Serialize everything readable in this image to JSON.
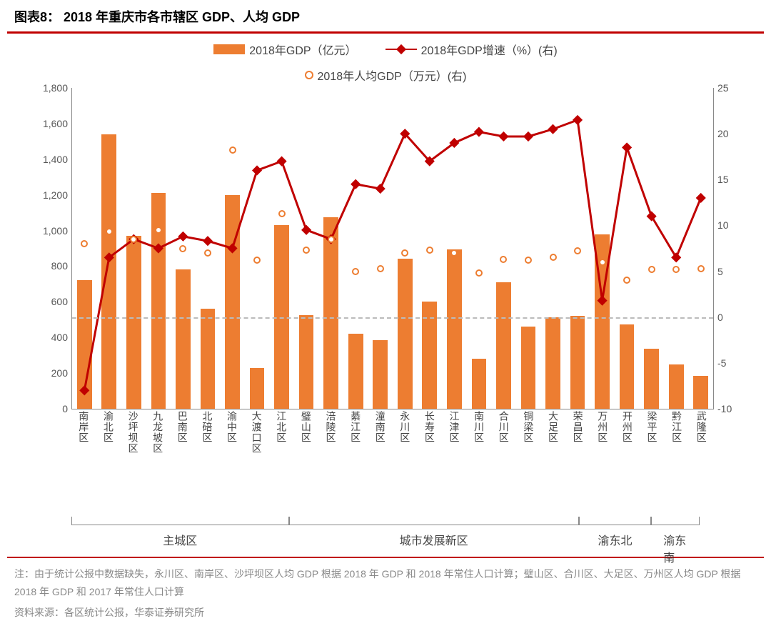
{
  "caption": "图表8：  2018 年重庆市各市辖区 GDP、人均 GDP",
  "legend": {
    "bar": "2018年GDP（亿元）",
    "line": "2018年GDP增速（%）(右)",
    "circle": "2018年人均GDP（万元）(右)"
  },
  "chart": {
    "type": "bar+line+scatter",
    "left_axis": {
      "min": 0,
      "max": 1800,
      "step": 200
    },
    "right_axis": {
      "min": -10,
      "max": 25,
      "step": 5
    },
    "zero_right_dash": true,
    "bar_color": "#ed7d31",
    "line_color": "#c00000",
    "circle_stroke": "#ed7d31",
    "grid_color": "#888888",
    "categories": [
      "南岸区",
      "渝北区",
      "沙坪坝区",
      "九龙坡区",
      "巴南区",
      "北碚区",
      "渝中区",
      "大渡口区",
      "江北区",
      "璧山区",
      "涪陵区",
      "綦江区",
      "潼南区",
      "永川区",
      "长寿区",
      "江津区",
      "南川区",
      "合川区",
      "铜梁区",
      "大足区",
      "荣昌区",
      "万州区",
      "开州区",
      "梁平区",
      "黔江区",
      "武隆区"
    ],
    "gdp": [
      720,
      1540,
      970,
      1210,
      780,
      560,
      1200,
      230,
      1030,
      525,
      1075,
      420,
      385,
      840,
      600,
      895,
      280,
      710,
      460,
      515,
      520,
      980,
      475,
      335,
      250,
      185
    ],
    "growth": [
      -8.0,
      6.5,
      8.5,
      7.5,
      8.8,
      8.3,
      7.5,
      16.0,
      17.0,
      9.5,
      8.5,
      14.5,
      14.0,
      20.0,
      17.0,
      19.0,
      20.2,
      19.7,
      19.7,
      20.5,
      21.5,
      1.8,
      18.5,
      11.0,
      6.5,
      13.0
    ],
    "percap": [
      8.0,
      9.3,
      8.5,
      9.5,
      7.5,
      7.0,
      18.2,
      6.2,
      11.3,
      7.3,
      8.5,
      5.0,
      5.3,
      7.0,
      7.3,
      7.0,
      4.8,
      6.3,
      6.2,
      6.5,
      7.2,
      6.0,
      4.0,
      5.2,
      5.2,
      5.3
    ],
    "bar_width_pct": 2.3
  },
  "groups": [
    {
      "label": "主城区",
      "from": 0,
      "to": 8
    },
    {
      "label": "城市发展新区",
      "from": 9,
      "to": 20
    },
    {
      "label": "渝东北",
      "from": 21,
      "to": 23
    },
    {
      "label": "渝东南",
      "from": 24,
      "to": 25
    }
  ],
  "note": "注：由于统计公报中数据缺失，永川区、南岸区、沙坪坝区人均 GDP 根据 2018 年 GDP 和 2018 年常住人口计算；璧山区、合川区、大足区、万州区人均 GDP 根据 2018 年 GDP 和 2017 年常住人口计算",
  "source": "资料来源：各区统计公报，华泰证券研究所"
}
